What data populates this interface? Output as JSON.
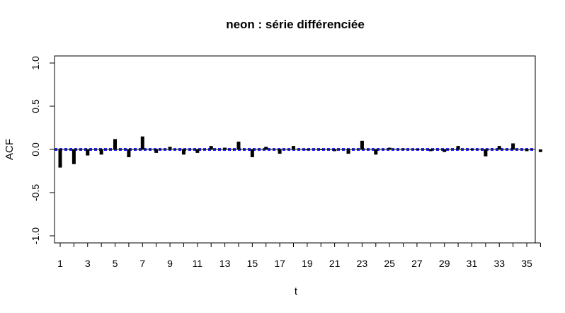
{
  "chart_data": {
    "type": "bar",
    "title": "neon : série différenciée",
    "xlabel": "t",
    "ylabel": "ACF",
    "xlim": [
      0.5,
      36.5
    ],
    "ylim": [
      -1.1,
      1.1
    ],
    "x_ticks": [
      1,
      3,
      5,
      7,
      9,
      11,
      13,
      15,
      17,
      19,
      21,
      23,
      25,
      27,
      29,
      31,
      33,
      35
    ],
    "x_tick_labels": [
      "1",
      "3",
      "5",
      "7",
      "9",
      "11",
      "13",
      "15",
      "17",
      "19",
      "21",
      "23",
      "25",
      "27",
      "29",
      "31",
      "33",
      "35"
    ],
    "y_ticks": [
      -1.0,
      -0.5,
      0.0,
      0.5,
      1.0
    ],
    "y_tick_labels": [
      "-1.0",
      "-0.5",
      "0.0",
      "0.5",
      "1.0"
    ],
    "lags": [
      1,
      2,
      3,
      4,
      5,
      6,
      7,
      8,
      9,
      10,
      11,
      12,
      13,
      14,
      15,
      16,
      17,
      18,
      19,
      20,
      21,
      22,
      23,
      24,
      25,
      26,
      27,
      28,
      29,
      30,
      31,
      32,
      33,
      34,
      35,
      36
    ],
    "values": [
      -0.21,
      -0.17,
      -0.07,
      -0.06,
      0.12,
      -0.09,
      0.15,
      -0.04,
      0.03,
      -0.06,
      -0.04,
      0.04,
      0.02,
      0.09,
      -0.09,
      0.03,
      -0.05,
      0.04,
      -0.01,
      0.0,
      -0.02,
      -0.05,
      0.1,
      -0.06,
      0.02,
      0.01,
      0.0,
      -0.02,
      -0.03,
      0.04,
      0.0,
      -0.08,
      0.04,
      0.07,
      -0.02,
      -0.03
    ],
    "confidence_bound": 0.01,
    "grid": false,
    "colors": {
      "bars": "#000000",
      "confidence_lines": "#0000ff",
      "zero_line": "#000000"
    }
  }
}
